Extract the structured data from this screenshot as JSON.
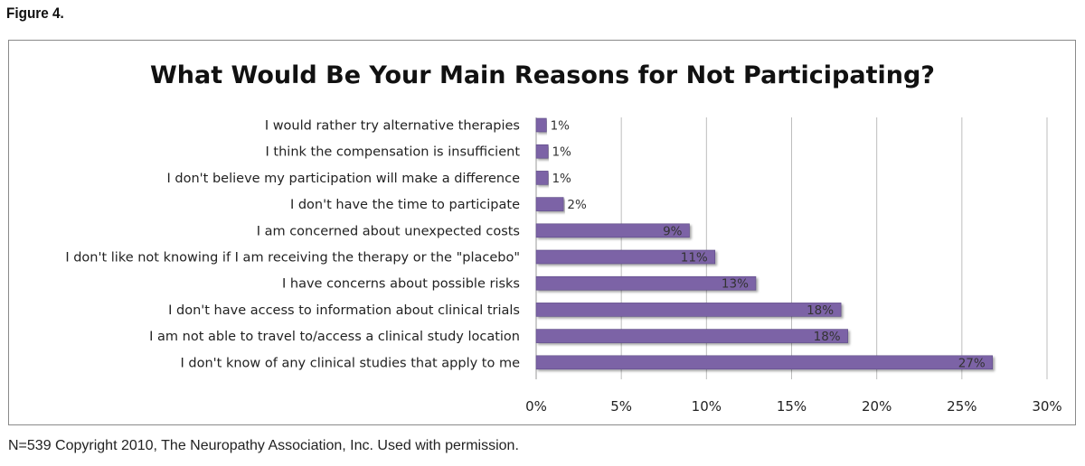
{
  "figure_label": "Figure 4.",
  "footnote": "N=539 Copyright 2010, The Neuropathy Association, Inc. Used with permission.",
  "chart_data": {
    "type": "bar",
    "orientation": "horizontal",
    "title": "What Would Be Your Main Reasons for Not Participating?",
    "categories": [
      "I would rather try alternative therapies",
      "I think the compensation is insufficient",
      "I don't believe my participation will make a difference",
      "I don't have the time to participate",
      "I am concerned about unexpected costs",
      "I don't like not knowing if I am receiving the therapy or the \"placebo\"",
      "I have concerns about possible risks",
      "I don't have access to information about clinical trials",
      "I am not able to travel to/access a clinical study location",
      "I don't know of any clinical studies that apply to me"
    ],
    "values": [
      0.6,
      0.7,
      0.7,
      1.6,
      9.0,
      10.5,
      12.9,
      17.9,
      18.3,
      26.8
    ],
    "value_labels": [
      "1%",
      "1%",
      "1%",
      "2%",
      "9%",
      "11%",
      "13%",
      "18%",
      "18%",
      "27%"
    ],
    "xlim": [
      0,
      30
    ],
    "xticks": [
      0,
      5,
      10,
      15,
      20,
      25,
      30
    ],
    "xtick_labels": [
      "0%",
      "5%",
      "10%",
      "15%",
      "20%",
      "25%",
      "30%"
    ],
    "grid": true,
    "bar_color": "#7b64a6"
  }
}
